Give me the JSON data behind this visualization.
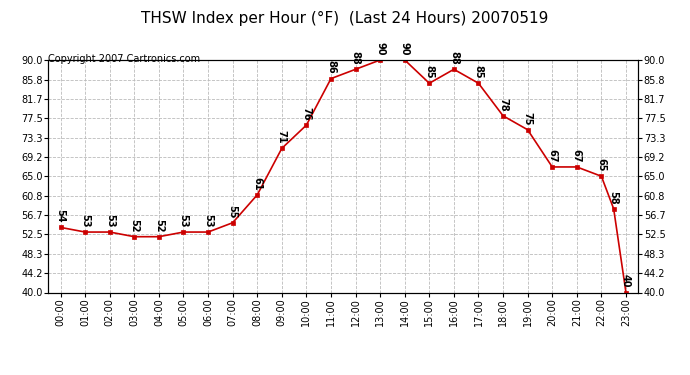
{
  "title": "THSW Index per Hour (°F)  (Last 24 Hours) 20070519",
  "copyright": "Copyright 2007 Cartronics.com",
  "x_data": [
    0,
    1,
    2,
    3,
    4,
    5,
    6,
    7,
    8,
    9,
    10,
    11,
    12,
    13,
    14,
    15,
    16,
    17,
    18,
    19,
    20,
    21,
    22,
    22.5,
    23
  ],
  "y_data": [
    54,
    53,
    53,
    52,
    52,
    53,
    53,
    55,
    61,
    71,
    76,
    86,
    88,
    90,
    90,
    85,
    88,
    85,
    78,
    75,
    67,
    67,
    65,
    58,
    40
  ],
  "point_labels": [
    "54",
    "53",
    "53",
    "52",
    "52",
    "53",
    "53",
    "55",
    "61",
    "71",
    "76",
    "86",
    "88",
    "90",
    "90",
    "85",
    "88",
    "85",
    "78",
    "75",
    "67",
    "67",
    "65",
    "58",
    "40"
  ],
  "ylim_min": 40.0,
  "ylim_max": 90.0,
  "yticks": [
    40.0,
    44.2,
    48.3,
    52.5,
    56.7,
    60.8,
    65.0,
    69.2,
    73.3,
    77.5,
    81.7,
    85.8,
    90.0
  ],
  "line_color": "#cc0000",
  "bg_color": "#ffffff",
  "grid_color": "#bbbbbb",
  "title_fontsize": 11,
  "tick_fontsize": 7,
  "annot_fontsize": 7,
  "copyright_fontsize": 7
}
